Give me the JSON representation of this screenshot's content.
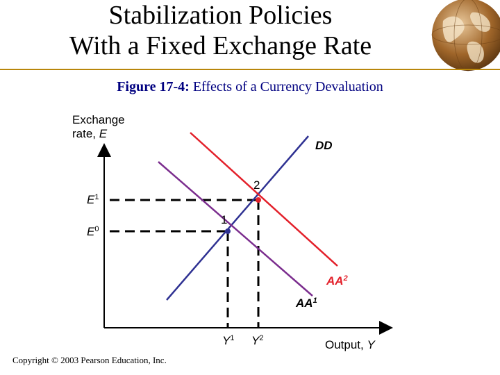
{
  "slide": {
    "title_line1": "Stabilization Policies",
    "title_line2": "With a Fixed Exchange Rate"
  },
  "figure": {
    "label": "Figure 17-4:",
    "caption": " Effects of a Currency Devaluation"
  },
  "diagram": {
    "y_axis_label_line1": "Exchange",
    "y_axis_label_line2_text": "rate, ",
    "y_axis_label_line2_var": "E",
    "x_axis_label_text": "Output, ",
    "x_axis_label_var": "Y",
    "dd_label": "DD",
    "aa1_label": "AA",
    "aa1_sup": "1",
    "aa2_label": "AA",
    "aa2_sup": "2",
    "e1_label": "E",
    "e1_sup": "1",
    "e0_label": "E",
    "e0_sup": "0",
    "y1_label": "Y",
    "y1_sup": "1",
    "y2_label": "Y",
    "y2_sup": "2",
    "point1_label": "1",
    "point2_label": "2",
    "colors": {
      "dd_curve": "#2e3192",
      "aa1_curve": "#7b2d8e",
      "aa2_curve": "#e3202a",
      "guides": "#000000",
      "accent_rule": "#b8860b"
    }
  },
  "footer": {
    "copyright": "Copyright © 2003 Pearson Education, Inc."
  }
}
